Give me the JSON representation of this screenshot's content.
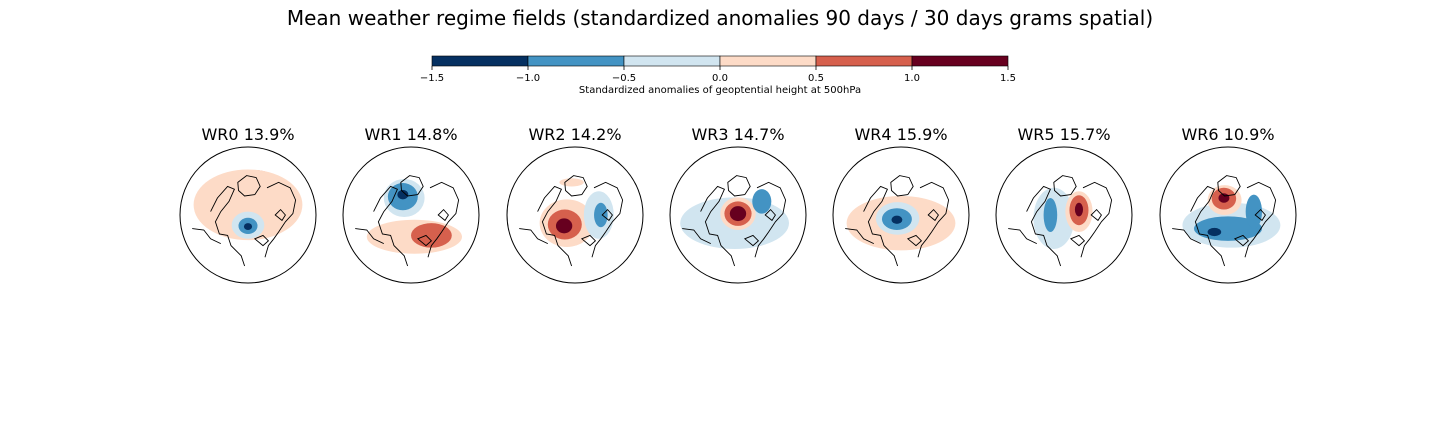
{
  "figure": {
    "suptitle": "Mean weather regime fields (standardized anomalies 90 days / 30 days grams spatial)"
  },
  "colors": {
    "levels": [
      "#053061",
      "#4393c3",
      "#d1e5f0",
      "#fddbc7",
      "#d6604d",
      "#67001f"
    ],
    "coast": "#000000",
    "background": "#ffffff"
  },
  "chart_data": {
    "type": "heatmap",
    "projection": "north polar stereographic",
    "colorbar": {
      "label": "Standardized anomalies of geoptential height at 500hPa",
      "boundaries": [
        -1.5,
        -1.0,
        -0.5,
        0.0,
        0.5,
        1.0,
        1.5
      ],
      "tick_labels": [
        "−1.5",
        "−1.0",
        "−0.5",
        "0.0",
        "0.5",
        "1.0",
        "1.5"
      ],
      "orientation": "horizontal",
      "placement": "top"
    },
    "regimes": [
      {
        "label": "WR0 13.9%",
        "name": "WR0",
        "frequency_pct": 13.9,
        "anomalies": [
          {
            "level": 1.25,
            "cx": 0.14,
            "cy": -0.38,
            "rx": 0.16,
            "ry": 0.2
          },
          {
            "level": 0.75,
            "cx": 0.12,
            "cy": -0.3,
            "rx": 0.37,
            "ry": 0.36
          },
          {
            "level": 0.25,
            "cx": 0.0,
            "cy": -0.15,
            "rx": 0.8,
            "ry": 0.52
          },
          {
            "level": -0.25,
            "cx": 0.0,
            "cy": 0.15,
            "rx": 0.24,
            "ry": 0.2
          },
          {
            "level": -0.75,
            "cx": 0.0,
            "cy": 0.16,
            "rx": 0.14,
            "ry": 0.12
          },
          {
            "level": -1.25,
            "cx": 0.0,
            "cy": 0.17,
            "rx": 0.06,
            "ry": 0.05
          }
        ]
      },
      {
        "label": "WR1 14.8%",
        "name": "WR1",
        "frequency_pct": 14.8,
        "anomalies": [
          {
            "level": 0.25,
            "cx": 0.05,
            "cy": 0.32,
            "rx": 0.7,
            "ry": 0.25
          },
          {
            "level": 0.75,
            "cx": 0.3,
            "cy": 0.3,
            "rx": 0.3,
            "ry": 0.18
          },
          {
            "level": -0.25,
            "cx": -0.1,
            "cy": -0.25,
            "rx": 0.3,
            "ry": 0.28
          },
          {
            "level": -0.75,
            "cx": -0.12,
            "cy": -0.27,
            "rx": 0.22,
            "ry": 0.2
          },
          {
            "level": -1.25,
            "cx": -0.12,
            "cy": -0.3,
            "rx": 0.08,
            "ry": 0.07
          }
        ]
      },
      {
        "label": "WR2 14.2%",
        "name": "WR2",
        "frequency_pct": 14.2,
        "anomalies": [
          {
            "level": 0.25,
            "cx": -0.12,
            "cy": 0.12,
            "rx": 0.4,
            "ry": 0.35
          },
          {
            "level": 0.75,
            "cx": -0.15,
            "cy": 0.14,
            "rx": 0.25,
            "ry": 0.22
          },
          {
            "level": 1.25,
            "cx": -0.16,
            "cy": 0.16,
            "rx": 0.12,
            "ry": 0.11
          },
          {
            "level": -0.25,
            "cx": 0.35,
            "cy": 0.0,
            "rx": 0.22,
            "ry": 0.35
          },
          {
            "level": -0.75,
            "cx": 0.38,
            "cy": 0.0,
            "rx": 0.1,
            "ry": 0.18
          },
          {
            "level": 0.25,
            "cx": -0.05,
            "cy": -0.48,
            "rx": 0.18,
            "ry": 0.06
          }
        ]
      },
      {
        "label": "WR3 14.7%",
        "name": "WR3",
        "frequency_pct": 14.7,
        "anomalies": [
          {
            "level": -0.25,
            "cx": -0.05,
            "cy": 0.12,
            "rx": 0.8,
            "ry": 0.38
          },
          {
            "level": 0.25,
            "cx": 0.0,
            "cy": -0.02,
            "rx": 0.26,
            "ry": 0.24
          },
          {
            "level": 0.75,
            "cx": 0.0,
            "cy": -0.02,
            "rx": 0.2,
            "ry": 0.18
          },
          {
            "level": 1.25,
            "cx": 0.0,
            "cy": -0.02,
            "rx": 0.12,
            "ry": 0.11
          },
          {
            "level": -0.75,
            "cx": 0.35,
            "cy": -0.2,
            "rx": 0.14,
            "ry": 0.18
          }
        ]
      },
      {
        "label": "WR4 15.9%",
        "name": "WR4",
        "frequency_pct": 15.9,
        "anomalies": [
          {
            "level": 0.25,
            "cx": 0.0,
            "cy": 0.12,
            "rx": 0.8,
            "ry": 0.4
          },
          {
            "level": -0.25,
            "cx": -0.05,
            "cy": 0.05,
            "rx": 0.32,
            "ry": 0.24
          },
          {
            "level": -0.75,
            "cx": -0.06,
            "cy": 0.06,
            "rx": 0.22,
            "ry": 0.16
          },
          {
            "level": -1.25,
            "cx": -0.06,
            "cy": 0.07,
            "rx": 0.08,
            "ry": 0.06
          }
        ]
      },
      {
        "label": "WR5 15.7%",
        "name": "WR5",
        "frequency_pct": 15.7,
        "anomalies": [
          {
            "level": -0.25,
            "cx": -0.15,
            "cy": 0.05,
            "rx": 0.3,
            "ry": 0.45
          },
          {
            "level": -0.75,
            "cx": -0.2,
            "cy": 0.0,
            "rx": 0.1,
            "ry": 0.25
          },
          {
            "level": 0.25,
            "cx": 0.22,
            "cy": -0.05,
            "rx": 0.2,
            "ry": 0.3
          },
          {
            "level": 0.75,
            "cx": 0.22,
            "cy": -0.07,
            "rx": 0.14,
            "ry": 0.22
          },
          {
            "level": 1.25,
            "cx": 0.22,
            "cy": -0.08,
            "rx": 0.06,
            "ry": 0.1
          }
        ]
      },
      {
        "label": "WR6 10.9%",
        "name": "WR6",
        "frequency_pct": 10.9,
        "anomalies": [
          {
            "level": -0.25,
            "cx": 0.05,
            "cy": 0.15,
            "rx": 0.72,
            "ry": 0.33
          },
          {
            "level": -0.75,
            "cx": 0.0,
            "cy": 0.2,
            "rx": 0.5,
            "ry": 0.18
          },
          {
            "level": -1.25,
            "cx": -0.2,
            "cy": 0.25,
            "rx": 0.1,
            "ry": 0.06
          },
          {
            "level": -0.75,
            "cx": 0.38,
            "cy": -0.05,
            "rx": 0.12,
            "ry": 0.25
          },
          {
            "level": 0.25,
            "cx": -0.05,
            "cy": -0.22,
            "rx": 0.25,
            "ry": 0.22
          },
          {
            "level": 0.75,
            "cx": -0.06,
            "cy": -0.24,
            "rx": 0.18,
            "ry": 0.16
          },
          {
            "level": 1.25,
            "cx": -0.06,
            "cy": -0.25,
            "rx": 0.08,
            "ry": 0.07
          }
        ]
      }
    ]
  }
}
